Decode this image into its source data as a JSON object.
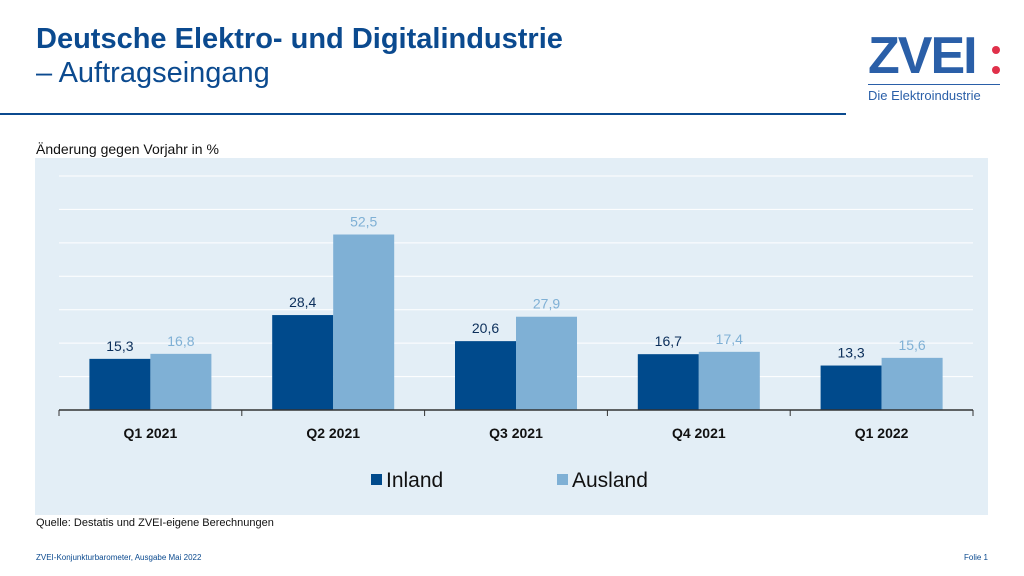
{
  "header": {
    "title_line1": "Deutsche Elektro- und Digitalindustrie",
    "title_line2": "– Auftragseingang"
  },
  "logo": {
    "text": "ZVEI",
    "subtitle": "Die Elektroindustrie"
  },
  "source": "Quelle: Destatis und ZVEI-eigene Berechnungen",
  "footer": {
    "left": "ZVEI-Konjunkturbarometer, Ausgabe Mai 2022",
    "right": "Folie 1"
  },
  "chart_data": {
    "type": "bar",
    "ylabel": "Änderung gegen Vorjahr in %",
    "categories": [
      "Q1 2021",
      "Q2 2021",
      "Q3 2021",
      "Q4 2021",
      "Q1 2022"
    ],
    "series": [
      {
        "name": "Inland",
        "values": [
          15.3,
          28.4,
          20.6,
          16.7,
          13.3
        ],
        "labels": [
          "15,3",
          "28,4",
          "20,6",
          "16,7",
          "13,3"
        ],
        "color": "#004a8c"
      },
      {
        "name": "Ausland",
        "values": [
          16.8,
          52.5,
          27.9,
          17.4,
          15.6
        ],
        "labels": [
          "16,8",
          "52,5",
          "27,9",
          "17,4",
          "15,6"
        ],
        "color": "#7fb0d5"
      }
    ],
    "ylim": [
      0,
      70
    ],
    "grid_step": 10,
    "grid": true,
    "y_tick_labels": false,
    "legend": "bottom"
  }
}
